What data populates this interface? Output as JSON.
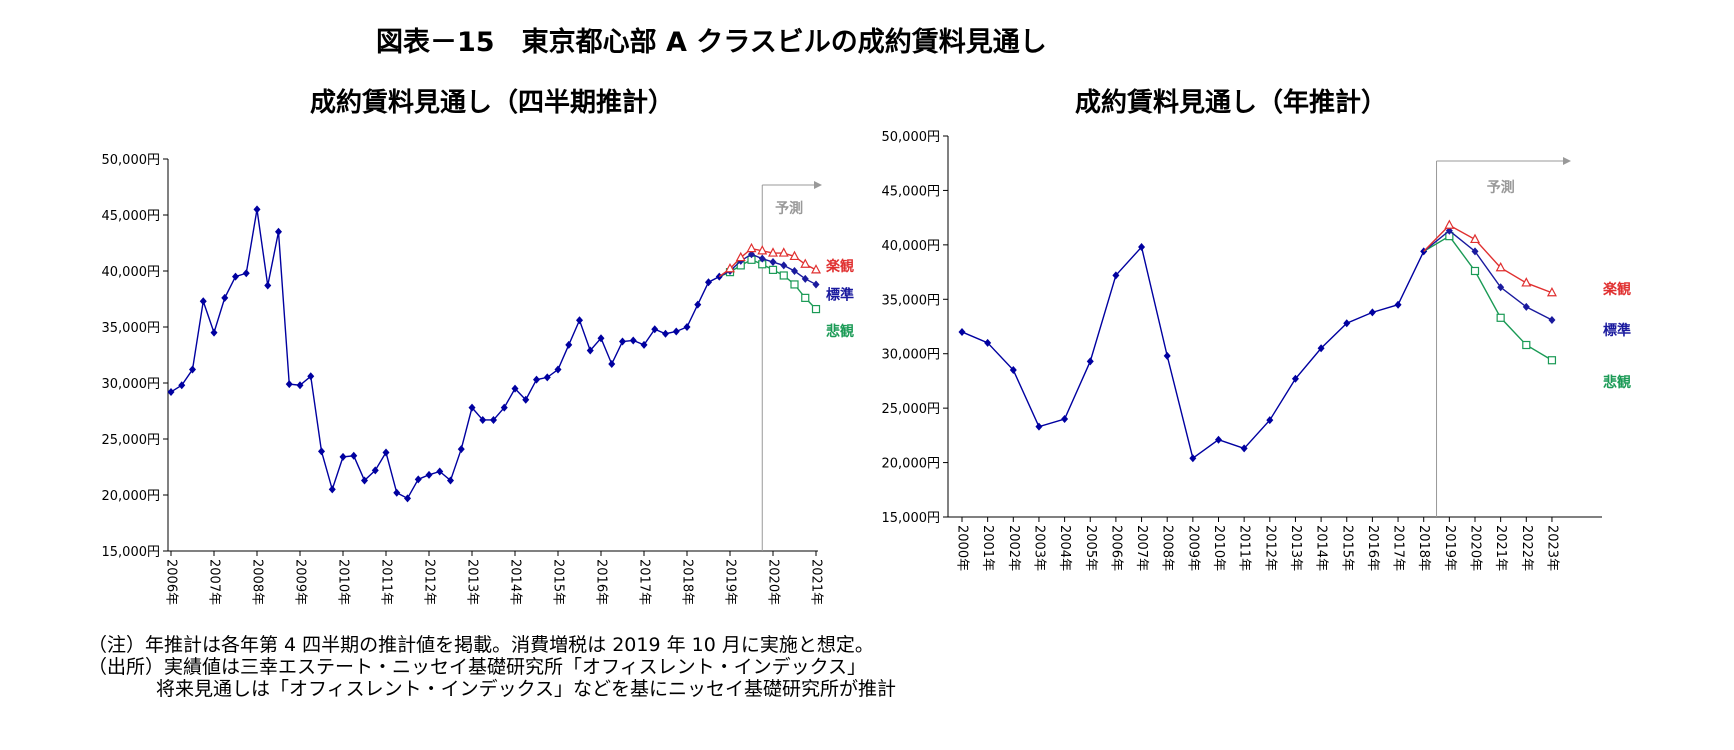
{
  "main_title": "図表－15　東京都心部 A クラスビルの成約賃料見通し",
  "colors": {
    "actual": "#0000a0",
    "standard": "#1a1a9e",
    "optimistic": "#e03030",
    "pessimistic": "#1a9a55",
    "axis": "#000000",
    "divider": "#999999"
  },
  "chart_data": [
    {
      "type": "line",
      "title": "成約賃料見通し（四半期推計）",
      "ylim": [
        15000,
        50000
      ],
      "y_ticks": [
        "50,000円",
        "45,000円",
        "40,000円",
        "35,000円",
        "30,000円",
        "25,000円",
        "20,000円",
        "15,000円"
      ],
      "x_tick_labels": [
        "2006年",
        "2007年",
        "2008年",
        "2009年",
        "2010年",
        "2011年",
        "2012年",
        "2013年",
        "2014年",
        "2015年",
        "2016年",
        "2017年",
        "2018年",
        "2019年",
        "2020年",
        "2021年"
      ],
      "forecast_label": "予測",
      "series": [
        {
          "key": "actual",
          "values": [
            29200,
            29800,
            31200,
            37300,
            34500,
            37600,
            39500,
            39800,
            45500,
            38700,
            43500,
            29900,
            29800,
            30600,
            23900,
            20500,
            23400,
            23500,
            21300,
            22200,
            23800,
            20200,
            19700,
            21400,
            21800,
            22100,
            21300,
            24100,
            27800,
            26700,
            26700,
            27800,
            29500,
            28500,
            30300,
            30500,
            31200,
            33400,
            35600,
            32900,
            34000,
            31700,
            33700,
            33800,
            33400,
            34800,
            34400,
            34600,
            35000,
            37000,
            39000,
            39500
          ]
        },
        {
          "key": "optimistic",
          "name": "楽観",
          "marker": "triangle",
          "start_index": 51,
          "values": [
            39500,
            40200,
            41200,
            42000,
            41800,
            41600,
            41600,
            41300,
            40600,
            40100
          ]
        },
        {
          "key": "standard",
          "name": "標準",
          "marker": "diamond",
          "start_index": 51,
          "values": [
            39500,
            40000,
            40900,
            41500,
            41100,
            40800,
            40500,
            40000,
            39300,
            38800
          ]
        },
        {
          "key": "pessimistic",
          "name": "悲観",
          "marker": "square",
          "start_index": 51,
          "values": [
            39500,
            39900,
            40500,
            41000,
            40600,
            40100,
            39600,
            38800,
            37600,
            36600
          ]
        }
      ]
    },
    {
      "type": "line",
      "title": "成約賃料見通し（年推計）",
      "ylim": [
        15000,
        50000
      ],
      "y_ticks": [
        "50,000円",
        "45,000円",
        "40,000円",
        "35,000円",
        "30,000円",
        "25,000円",
        "20,000円",
        "15,000円"
      ],
      "x_tick_labels": [
        "2000年",
        "2001年",
        "2002年",
        "2003年",
        "2004年",
        "2005年",
        "2006年",
        "2007年",
        "2008年",
        "2009年",
        "2010年",
        "2011年",
        "2012年",
        "2013年",
        "2014年",
        "2015年",
        "2016年",
        "2017年",
        "2018年",
        "2019年",
        "2020年",
        "2021年",
        "2022年",
        "2023年"
      ],
      "forecast_label": "予測",
      "series": [
        {
          "key": "actual",
          "values": [
            32000,
            31000,
            28500,
            23300,
            24000,
            29300,
            37200,
            39800,
            29800,
            20400,
            22100,
            21300,
            23900,
            27700,
            30500,
            32800,
            33800,
            34500,
            39400
          ]
        },
        {
          "key": "optimistic",
          "name": "楽観",
          "marker": "triangle",
          "start_index": 18,
          "values": [
            39400,
            41800,
            40500,
            37900,
            36500,
            35600
          ]
        },
        {
          "key": "standard",
          "name": "標準",
          "marker": "diamond",
          "start_index": 18,
          "values": [
            39400,
            41300,
            39400,
            36100,
            34300,
            33100
          ]
        },
        {
          "key": "pessimistic",
          "name": "悲観",
          "marker": "square",
          "start_index": 18,
          "values": [
            39400,
            40800,
            37600,
            33300,
            30800,
            29400
          ]
        }
      ]
    }
  ],
  "notes": [
    "（注）年推計は各年第 4 四半期の推計値を掲載。消費増税は 2019 年 10 月に実施と想定。",
    "（出所）実績値は三幸エステート・ニッセイ基礎研究所「オフィスレント・インデックス」",
    "将来見通しは「オフィスレント・インデックス」などを基にニッセイ基礎研究所が推計"
  ]
}
